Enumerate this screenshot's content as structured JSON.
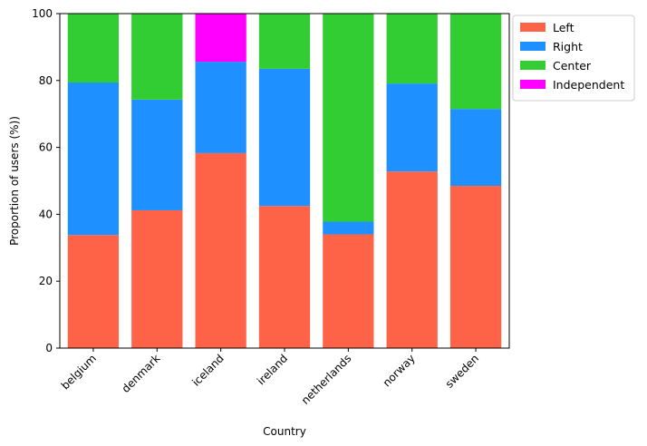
{
  "chart_data": {
    "type": "bar",
    "stacked": true,
    "categories": [
      "belgium",
      "denmark",
      "iceland",
      "ireland",
      "netherlands",
      "norway",
      "sweden"
    ],
    "series": [
      {
        "name": "Left",
        "color": "#ff6347",
        "values": [
          33.8,
          41.2,
          58.3,
          42.5,
          34.0,
          52.8,
          48.5
        ]
      },
      {
        "name": "Right",
        "color": "#1e90ff",
        "values": [
          45.6,
          33.1,
          27.3,
          41.0,
          3.8,
          26.3,
          23.0
        ]
      },
      {
        "name": "Center",
        "color": "#32cd32",
        "values": [
          20.6,
          25.7,
          0.0,
          16.5,
          62.2,
          20.9,
          28.5
        ]
      },
      {
        "name": "Independent",
        "color": "#ff00ff",
        "values": [
          0.0,
          0.0,
          14.4,
          0.0,
          0.0,
          0.0,
          0.0
        ]
      }
    ],
    "xlabel": "Country",
    "ylabel": "Proportion of users (%))",
    "ylim": [
      0,
      100
    ],
    "yticks": [
      0,
      20,
      40,
      60,
      80,
      100
    ],
    "grid": false,
    "legend_position": "outside-top-right"
  }
}
